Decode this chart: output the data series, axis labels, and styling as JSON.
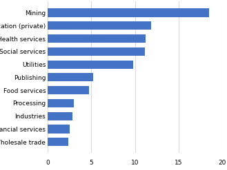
{
  "categories": [
    "Mining",
    "Education (private)",
    "Health services",
    "Social services",
    "Utilities",
    "Publishing",
    "Food services",
    "Processing",
    "Industries",
    "Financial services",
    "Wholesale trade"
  ],
  "values": [
    18.5,
    11.8,
    11.2,
    11.1,
    9.8,
    5.2,
    4.7,
    3.0,
    2.8,
    2.5,
    2.4
  ],
  "bar_color": "#4472C4",
  "background_color": "#ffffff",
  "gridline_color": "#d9d9d9",
  "xlim": [
    0,
    20
  ],
  "xticks": [
    0,
    5,
    10,
    15,
    20
  ],
  "bar_height": 0.65,
  "label_fontsize": 6.5,
  "tick_fontsize": 6.5
}
